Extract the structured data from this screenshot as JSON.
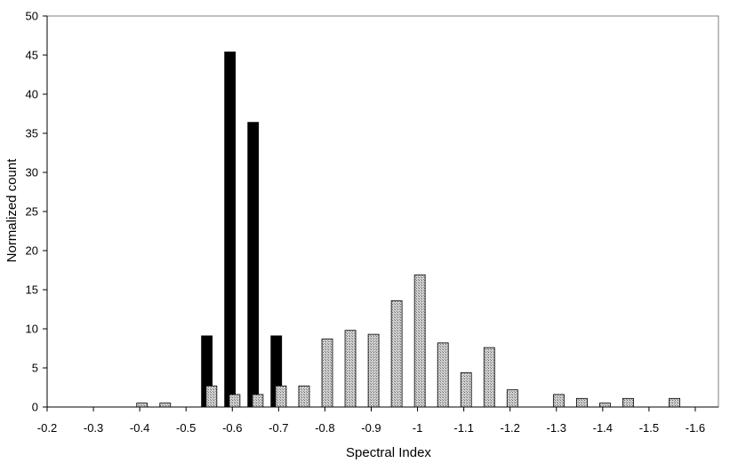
{
  "chart_data": {
    "type": "bar",
    "title": "",
    "xlabel": "Spectral Index",
    "ylabel": "Normalized count",
    "ylim": [
      0,
      50
    ],
    "yticks": [
      0,
      5,
      10,
      15,
      20,
      25,
      30,
      35,
      40,
      45,
      50
    ],
    "xlim": [
      -0.2,
      -1.65
    ],
    "x_axis_reversed": true,
    "xticks": [
      -0.2,
      -0.3,
      -0.4,
      -0.5,
      -0.6,
      -0.7,
      -0.8,
      -0.9,
      -1,
      -1.1,
      -1.2,
      -1.3,
      -1.4,
      -1.5,
      -1.6
    ],
    "xtick_labels": [
      "-0.2",
      "-0.3",
      "-0.4",
      "-0.5",
      "-0.6",
      "-0.7",
      "-0.8",
      "-0.9",
      "-1",
      "-1.1",
      "-1.2",
      "-1.3",
      "-1.4",
      "-1.5",
      "-1.6"
    ],
    "grid": false,
    "legend": "none",
    "series": [
      {
        "color": "#000000",
        "pattern": "solid",
        "points": [
          {
            "x": -0.545,
            "y": 9.1
          },
          {
            "x": -0.595,
            "y": 45.4
          },
          {
            "x": -0.645,
            "y": 36.4
          },
          {
            "x": -0.695,
            "y": 9.1
          }
        ]
      },
      {
        "color": "#b8b8b8",
        "pattern": "stipple",
        "points": [
          {
            "x": -0.405,
            "y": 0.5
          },
          {
            "x": -0.455,
            "y": 0.5
          },
          {
            "x": -0.555,
            "y": 2.7
          },
          {
            "x": -0.605,
            "y": 1.6
          },
          {
            "x": -0.655,
            "y": 1.6
          },
          {
            "x": -0.705,
            "y": 2.7
          },
          {
            "x": -0.755,
            "y": 2.7
          },
          {
            "x": -0.805,
            "y": 8.7
          },
          {
            "x": -0.855,
            "y": 9.8
          },
          {
            "x": -0.905,
            "y": 9.3
          },
          {
            "x": -0.955,
            "y": 13.6
          },
          {
            "x": -1.005,
            "y": 16.9
          },
          {
            "x": -1.055,
            "y": 8.2
          },
          {
            "x": -1.105,
            "y": 4.4
          },
          {
            "x": -1.155,
            "y": 7.6
          },
          {
            "x": -1.205,
            "y": 2.2
          },
          {
            "x": -1.305,
            "y": 1.6
          },
          {
            "x": -1.355,
            "y": 1.1
          },
          {
            "x": -1.405,
            "y": 0.5
          },
          {
            "x": -1.455,
            "y": 1.1
          },
          {
            "x": -1.555,
            "y": 1.1
          }
        ]
      }
    ]
  }
}
